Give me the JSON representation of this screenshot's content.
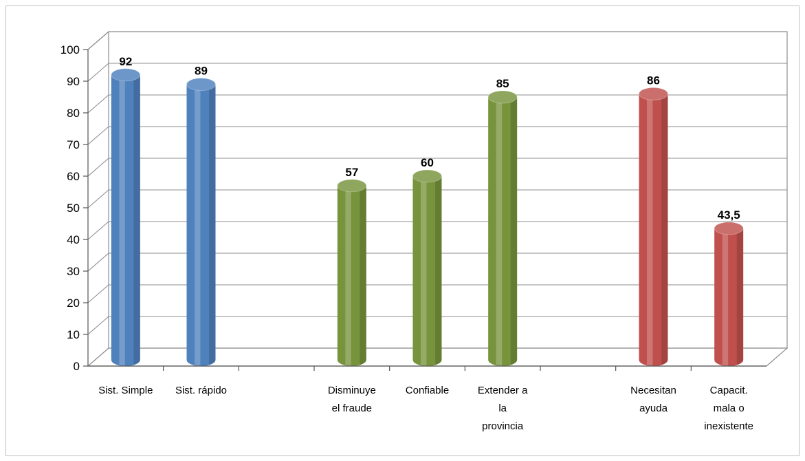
{
  "chart_data": {
    "type": "bar",
    "categories": [
      "Sist. Simple",
      "Sist. rápido",
      "",
      "Disminuye el fraude",
      "Confiable",
      "Extender a la provincia",
      "",
      "Necesitan ayuda",
      "Capacit. mala o inexistente"
    ],
    "category_lines": [
      [
        "Sist. Simple"
      ],
      [
        "Sist. rápido"
      ],
      [],
      [
        "Disminuye",
        "el fraude"
      ],
      [
        "Confiable"
      ],
      [
        "Extender a",
        "la",
        "provincia"
      ],
      [],
      [
        "Necesitan",
        "ayuda"
      ],
      [
        "Capacit.",
        "mala o",
        "inexistente"
      ]
    ],
    "values": [
      92,
      89,
      null,
      57,
      60,
      85,
      null,
      86,
      43.5
    ],
    "data_labels": [
      "92",
      "89",
      "",
      "57",
      "60",
      "85",
      "",
      "86",
      "43,5"
    ],
    "bar_colors": [
      "#4f81bd",
      "#4f81bd",
      "",
      "#77933c",
      "#77933c",
      "#77933c",
      "",
      "#c0504d",
      "#c0504d"
    ],
    "ylim": [
      0,
      100
    ],
    "yticks": [
      "0",
      "10",
      "20",
      "30",
      "40",
      "50",
      "60",
      "70",
      "80",
      "90",
      "100"
    ],
    "title": "",
    "xlabel": "",
    "ylabel": "",
    "grid": true,
    "style": "3d-cylinder"
  }
}
